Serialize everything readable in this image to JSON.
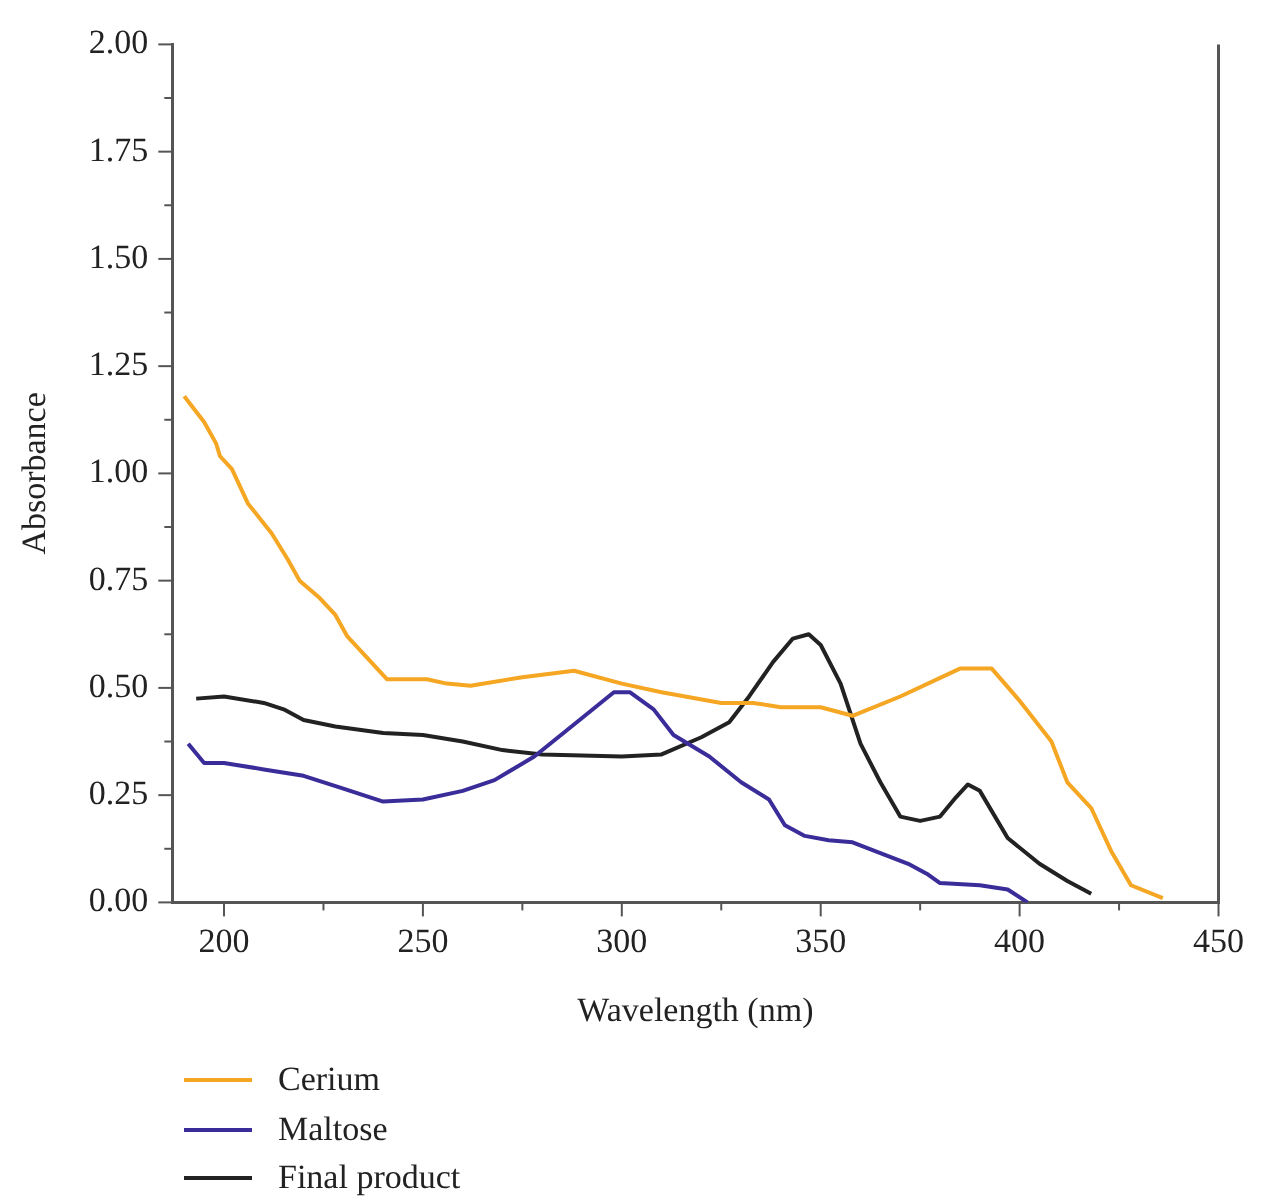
{
  "chart_data": {
    "type": "line",
    "xlabel": "Wavelength (nm)",
    "ylabel": "Absorbance",
    "xlim": [
      187,
      450
    ],
    "ylim": [
      0,
      2
    ],
    "xticks": [
      200,
      {
        "value": 225,
        "label": null
      },
      250,
      {
        "value": 275,
        "label": null
      },
      300,
      {
        "value": 325,
        "label": null
      },
      350,
      {
        "value": 375,
        "label": null
      },
      400,
      {
        "value": 425,
        "label": null
      },
      450
    ],
    "yticks": [
      {
        "value": 0,
        "label": "0.00"
      },
      {
        "value": 0.125,
        "label": null
      },
      {
        "value": 0.25,
        "label": "0.25"
      },
      {
        "value": 0.375,
        "label": null
      },
      {
        "value": 0.5,
        "label": "0.50"
      },
      {
        "value": 0.625,
        "label": null
      },
      {
        "value": 0.75,
        "label": "0.75"
      },
      {
        "value": 0.875,
        "label": null
      },
      {
        "value": 1,
        "label": "1.00"
      },
      {
        "value": 1.125,
        "label": null
      },
      {
        "value": 1.25,
        "label": "1.25"
      },
      {
        "value": 1.375,
        "label": null
      },
      {
        "value": 1.5,
        "label": "1.50"
      },
      {
        "value": 1.625,
        "label": null
      },
      {
        "value": 1.75,
        "label": "1.75"
      },
      {
        "value": 1.875,
        "label": null
      },
      {
        "value": 2,
        "label": "2.00"
      }
    ],
    "grid": false,
    "legend": "bottom",
    "marker": "none",
    "line_style": "solid",
    "series": [
      {
        "name": "Cerium",
        "color": "#f5a623",
        "x": [
          190,
          195,
          198,
          199,
          202,
          206,
          212,
          216,
          219,
          224,
          228,
          231,
          241,
          251,
          256,
          262,
          275,
          288,
          300,
          310,
          325,
          333,
          340,
          350,
          358,
          370,
          385,
          393,
          400,
          408,
          412,
          418,
          423,
          428,
          436
        ],
        "values": [
          1.18,
          1.12,
          1.07,
          1.04,
          1.01,
          0.93,
          0.86,
          0.8,
          0.75,
          0.71,
          0.67,
          0.62,
          0.52,
          0.52,
          0.51,
          0.505,
          0.525,
          0.54,
          0.51,
          0.49,
          0.465,
          0.465,
          0.455,
          0.455,
          0.435,
          0.48,
          0.545,
          0.545,
          0.47,
          0.375,
          0.28,
          0.22,
          0.12,
          0.04,
          0.01
        ]
      },
      {
        "name": "Maltose",
        "color": "#3a2d9a",
        "x": [
          191,
          195,
          200,
          210,
          220,
          230,
          240,
          250,
          260,
          268,
          278,
          290,
          298,
          302,
          308,
          313,
          322,
          330,
          337,
          341,
          346,
          352,
          358,
          365,
          372,
          377,
          380,
          390,
          397,
          402
        ],
        "values": [
          0.37,
          0.325,
          0.325,
          0.31,
          0.295,
          0.265,
          0.235,
          0.24,
          0.26,
          0.285,
          0.34,
          0.43,
          0.49,
          0.49,
          0.45,
          0.39,
          0.34,
          0.28,
          0.24,
          0.18,
          0.155,
          0.145,
          0.14,
          0.115,
          0.09,
          0.065,
          0.045,
          0.04,
          0.03,
          0
        ]
      },
      {
        "name": "Final product",
        "color": "#222222",
        "x": [
          193,
          200,
          210,
          215,
          220,
          228,
          240,
          250,
          260,
          270,
          280,
          300,
          310,
          320,
          327,
          332,
          338,
          343,
          347,
          350,
          355,
          360,
          365,
          370,
          375,
          380,
          384,
          387,
          390,
          397,
          405,
          412,
          418
        ],
        "values": [
          0.475,
          0.48,
          0.465,
          0.45,
          0.425,
          0.41,
          0.395,
          0.39,
          0.375,
          0.355,
          0.345,
          0.34,
          0.345,
          0.385,
          0.42,
          0.48,
          0.56,
          0.615,
          0.625,
          0.6,
          0.51,
          0.37,
          0.28,
          0.2,
          0.19,
          0.2,
          0.245,
          0.275,
          0.26,
          0.15,
          0.09,
          0.05,
          0.02
        ]
      }
    ]
  }
}
